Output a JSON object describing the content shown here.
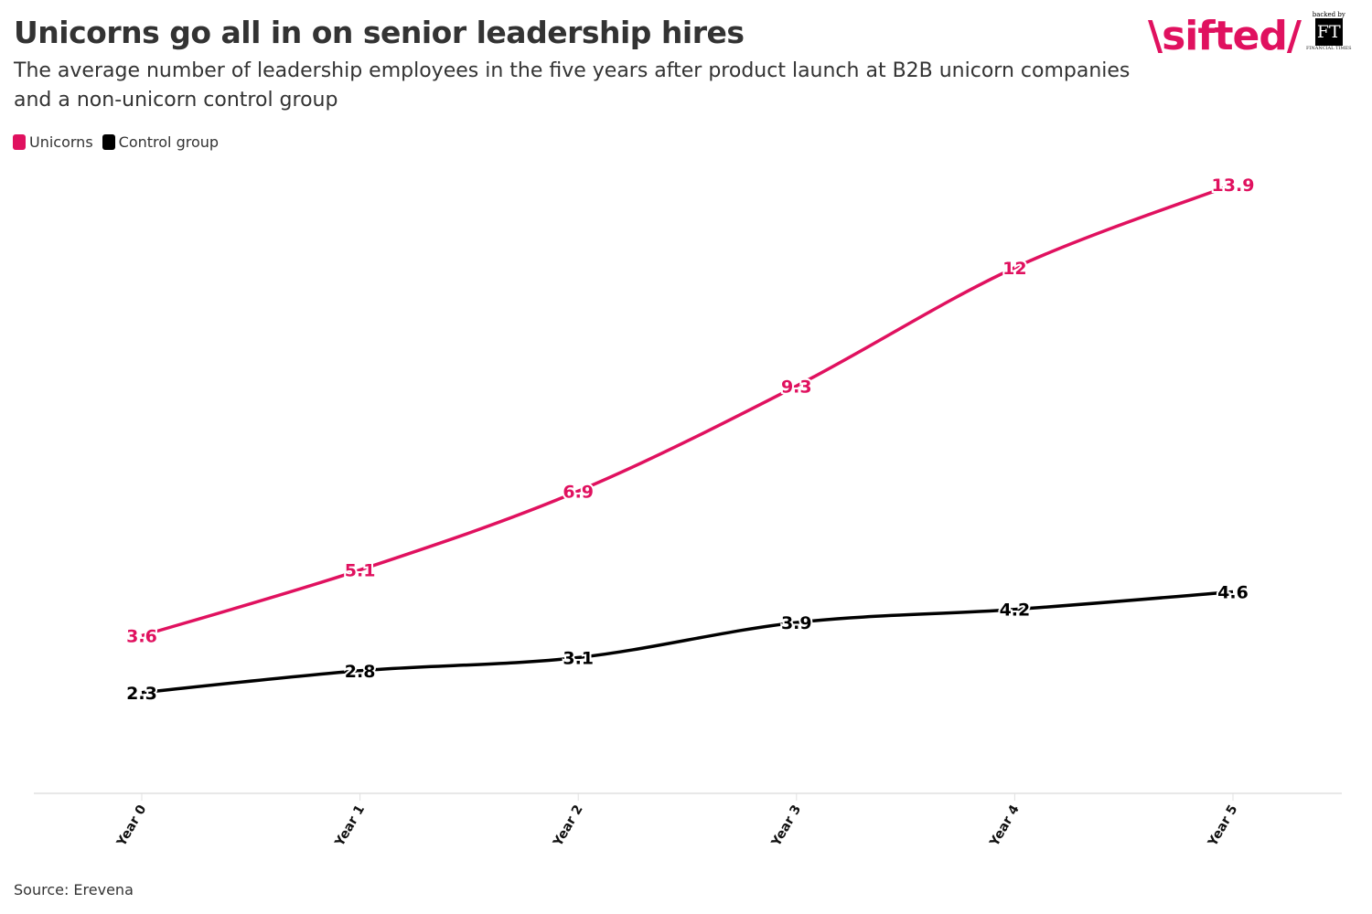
{
  "header": {
    "title": "Unicorns go all in on senior leadership hires",
    "subtitle": "The average number of leadership employees in the five years after product launch at B2B unicorn companies and a non-unicorn control group"
  },
  "logo": {
    "brand": "sifted",
    "backed_by": "backed by",
    "ft": "FT",
    "ft_sub": "FINANCIAL TIMES"
  },
  "footer": {
    "source": "Source: Erevena"
  },
  "colors": {
    "unicorns": "#e0115f",
    "control": "#000000",
    "axis": "#e0e0e0"
  },
  "chart_data": {
    "type": "line",
    "title": "Unicorns go all in on senior leadership hires",
    "categories": [
      "Year 0",
      "Year 1",
      "Year 2",
      "Year 3",
      "Year 4",
      "Year 5"
    ],
    "series": [
      {
        "name": "Unicorns",
        "values": [
          3.6,
          5.1,
          6.9,
          9.3,
          12,
          13.9
        ],
        "labels": [
          "3.6",
          "5.1",
          "6.9",
          "9.3",
          "12",
          "13.9"
        ]
      },
      {
        "name": "Control group",
        "values": [
          2.3,
          2.8,
          3.1,
          3.9,
          4.2,
          4.6
        ],
        "labels": [
          "2.3",
          "2.8",
          "3.1",
          "3.9",
          "4.2",
          "4.6"
        ]
      }
    ],
    "ylim": [
      0,
      14
    ],
    "grid": false,
    "legend": "top-left",
    "smooth": true
  }
}
